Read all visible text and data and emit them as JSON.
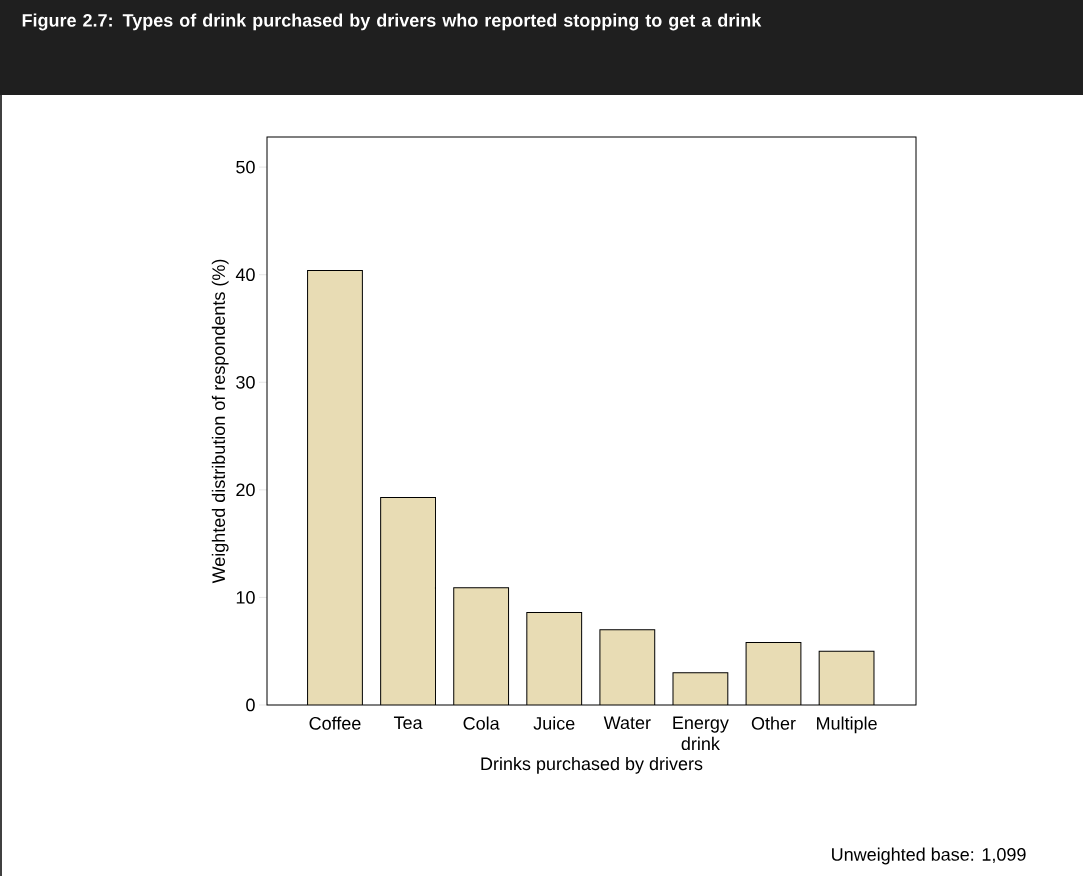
{
  "chart_data": {
    "type": "bar",
    "title": "Figure 2.7: Types of drink purchased by drivers who reported stopping to get a drink",
    "xlabel": "Drinks purchased by drivers",
    "ylabel": "Weighted distribution of respondents (%)",
    "categories": [
      "Coffee",
      "Tea",
      "Cola",
      "Juice",
      "Water",
      "Energy drink",
      "Other",
      "Multiple"
    ],
    "values": [
      40.4,
      19.3,
      10.9,
      8.6,
      7.0,
      3.0,
      5.8,
      5.0
    ],
    "color": "#e8dcb4",
    "ylim": [
      0,
      52.8
    ],
    "yticks": [
      0,
      10,
      20,
      30,
      40,
      50
    ],
    "annotations": [
      "Unweighted base: 1,099"
    ]
  }
}
